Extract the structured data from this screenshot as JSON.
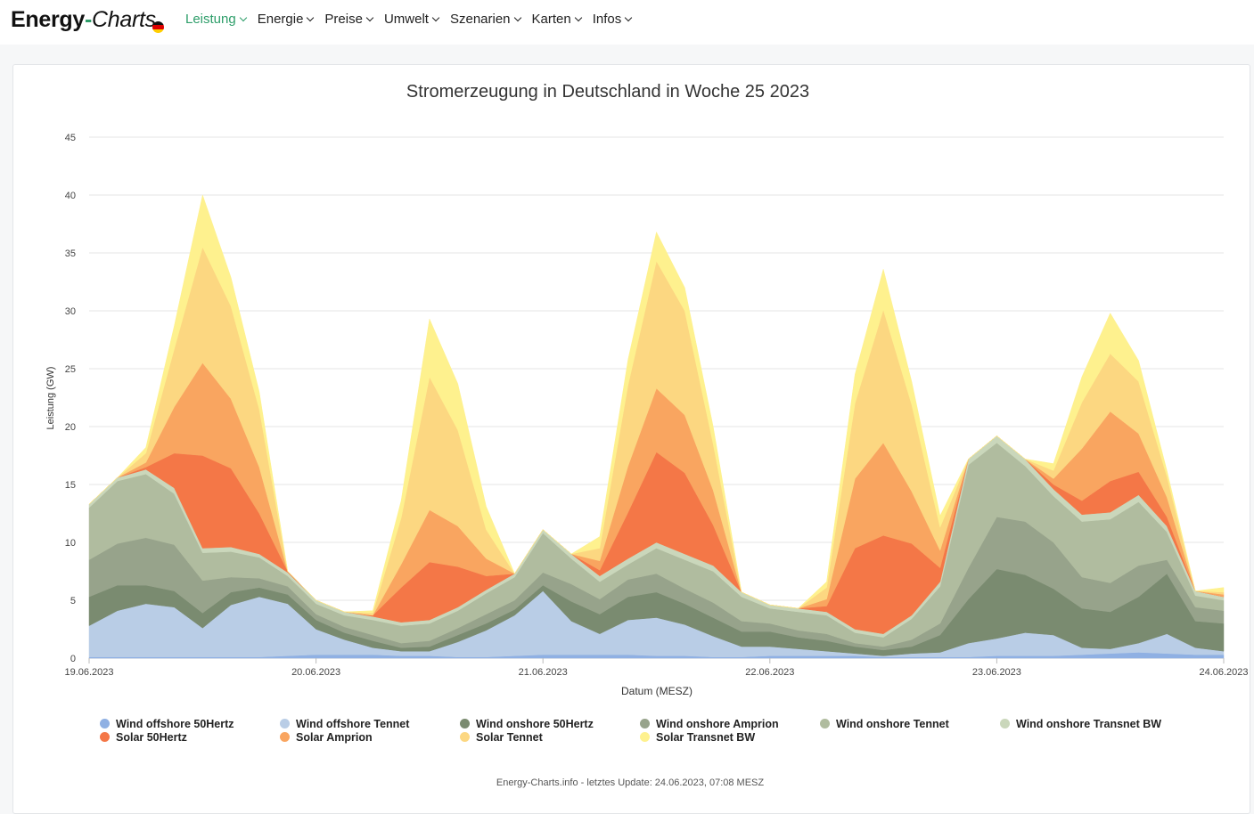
{
  "nav": {
    "logo_main": "Energy",
    "logo_dash": "-",
    "logo_sub": "Charts",
    "items": [
      {
        "label": "Leistung",
        "active": true
      },
      {
        "label": "Energie",
        "active": false
      },
      {
        "label": "Preise",
        "active": false
      },
      {
        "label": "Umwelt",
        "active": false
      },
      {
        "label": "Szenarien",
        "active": false
      },
      {
        "label": "Karten",
        "active": false
      },
      {
        "label": "Infos",
        "active": false
      }
    ]
  },
  "footer": "Energy-Charts.info - letztes Update: 24.06.2023, 07:08 MESZ",
  "chart_data": {
    "type": "area",
    "stacked": true,
    "title": "Stromerzeugung in Deutschland in Woche 25 2023",
    "xlabel": "Datum (MESZ)",
    "ylabel": "Leistung (GW)",
    "ylim": [
      0,
      45
    ],
    "yticks": [
      0,
      5,
      10,
      15,
      20,
      25,
      30,
      35,
      40,
      45
    ],
    "xlim": [
      0,
      5
    ],
    "xticks": [
      {
        "value": 0,
        "label": "19.06.2023"
      },
      {
        "value": 1,
        "label": "20.06.2023"
      },
      {
        "value": 2,
        "label": "21.06.2023"
      },
      {
        "value": 3,
        "label": "22.06.2023"
      },
      {
        "value": 4,
        "label": "23.06.2023"
      },
      {
        "value": 5,
        "label": "24.06.2023"
      }
    ],
    "x_unit": "days since 19.06.2023 00:00",
    "x": [
      0,
      0.125,
      0.25,
      0.375,
      0.5,
      0.625,
      0.75,
      0.875,
      1,
      1.125,
      1.25,
      1.375,
      1.5,
      1.625,
      1.75,
      1.875,
      2,
      2.125,
      2.25,
      2.375,
      2.5,
      2.625,
      2.75,
      2.875,
      3,
      3.125,
      3.25,
      3.375,
      3.5,
      3.625,
      3.75,
      3.875,
      4,
      4.125,
      4.25,
      4.375,
      4.5,
      4.625,
      4.75,
      4.875,
      5
    ],
    "series": [
      {
        "name": "Wind offshore 50Hertz",
        "color": "#8fb0e3",
        "values": [
          0.1,
          0.1,
          0.1,
          0.1,
          0.1,
          0.1,
          0.1,
          0.2,
          0.3,
          0.3,
          0.3,
          0.2,
          0.2,
          0.1,
          0.1,
          0.2,
          0.3,
          0.3,
          0.3,
          0.3,
          0.2,
          0.2,
          0.1,
          0.1,
          0.2,
          0.2,
          0.2,
          0.2,
          0.1,
          0.1,
          0.1,
          0.1,
          0.2,
          0.2,
          0.2,
          0.3,
          0.4,
          0.5,
          0.4,
          0.3,
          0.3
        ]
      },
      {
        "name": "Wind offshore Tennet",
        "color": "#b9cde6",
        "values": [
          2.7,
          4,
          4.6,
          4.3,
          2.5,
          4.5,
          5.2,
          4.5,
          2.2,
          1.3,
          0.6,
          0.4,
          0.4,
          1.3,
          2.3,
          3.5,
          5.5,
          2.9,
          1.8,
          3,
          3.3,
          2.7,
          1.8,
          0.9,
          0.8,
          0.6,
          0.4,
          0.2,
          0.1,
          0.3,
          0.4,
          1.2,
          1.5,
          2,
          1.8,
          0.6,
          0.4,
          0.8,
          1.7,
          0.6,
          0.3
        ]
      },
      {
        "name": "Wind onshore 50Hertz",
        "color": "#7a8b70",
        "values": [
          2.5,
          2.2,
          1.6,
          1.4,
          1.3,
          1.1,
          0.8,
          0.8,
          0.8,
          0.6,
          0.6,
          0.3,
          0.4,
          0.6,
          0.6,
          0.5,
          0.5,
          1.7,
          1.7,
          2,
          2.2,
          1.8,
          1.6,
          1.3,
          1.3,
          1,
          0.9,
          0.6,
          0.5,
          0.6,
          1.5,
          3.8,
          6,
          5,
          4,
          3.4,
          3.2,
          4,
          5.2,
          2.3,
          2.4
        ]
      },
      {
        "name": "Wind onshore Amprion",
        "color": "#97a38b",
        "values": [
          3.2,
          3.6,
          4.1,
          4,
          2.8,
          1.3,
          0.8,
          0.7,
          0.5,
          0.5,
          0.5,
          0.4,
          0.5,
          0.6,
          0.8,
          0.8,
          1.1,
          1.5,
          1.3,
          1.5,
          1.6,
          1.3,
          1.3,
          0.9,
          0.7,
          0.6,
          0.6,
          0.3,
          0.3,
          0.6,
          1,
          2.7,
          4.5,
          4.6,
          4,
          2.7,
          2.5,
          2.7,
          1.2,
          1.2,
          1.1
        ]
      },
      {
        "name": "Wind onshore Tennet",
        "color": "#b0bc9f",
        "values": [
          4.5,
          5.4,
          5.5,
          4.4,
          2.4,
          2.2,
          1.8,
          0.9,
          0.9,
          1,
          1.3,
          1.5,
          1.5,
          1.5,
          1.8,
          2,
          3.4,
          2.2,
          1.5,
          1.3,
          2.2,
          2.5,
          2.7,
          2.1,
          1.3,
          1.6,
          1.6,
          0.9,
          0.8,
          1.8,
          3.2,
          8.9,
          6.4,
          4.8,
          4,
          4.8,
          5.5,
          5.5,
          2.4,
          1,
          0.9
        ]
      },
      {
        "name": "Wind onshore Transnet BW",
        "color": "#cad7bb",
        "values": [
          0.3,
          0.3,
          0.4,
          0.5,
          0.4,
          0.4,
          0.3,
          0.3,
          0.3,
          0.3,
          0.3,
          0.3,
          0.3,
          0.3,
          0.3,
          0.3,
          0.3,
          0.4,
          0.5,
          0.5,
          0.5,
          0.5,
          0.5,
          0.4,
          0.3,
          0.3,
          0.3,
          0.3,
          0.3,
          0.3,
          0.4,
          0.5,
          0.6,
          0.6,
          0.6,
          0.6,
          0.6,
          0.6,
          0.5,
          0.4,
          0.3
        ]
      },
      {
        "name": "Solar 50Hertz",
        "color": "#f47747",
        "values": [
          0,
          0,
          0.2,
          3,
          8,
          6.8,
          3.5,
          0.1,
          0,
          0,
          0.1,
          3,
          5,
          3.5,
          1.2,
          0,
          0,
          0,
          0.5,
          4,
          7.8,
          7,
          3.5,
          0,
          0,
          0,
          0.5,
          7,
          8.5,
          6.2,
          1.2,
          0,
          0,
          0,
          0.4,
          1.2,
          2.7,
          2,
          0.8,
          0,
          0
        ]
      },
      {
        "name": "Solar Amprion",
        "color": "#f9a560",
        "values": [
          0,
          0,
          0.4,
          4,
          8,
          6,
          4,
          0,
          0,
          0,
          0,
          2,
          4.5,
          3.5,
          1.5,
          0,
          0,
          0,
          0.8,
          4,
          5.5,
          5,
          3,
          0,
          0,
          0,
          0.6,
          6,
          8,
          4.5,
          1.5,
          0,
          0,
          0,
          0.5,
          4.5,
          6,
          3.3,
          1.7,
          0,
          0.2
        ]
      },
      {
        "name": "Solar Tennet",
        "color": "#fcd781",
        "values": [
          0,
          0,
          0.8,
          5,
          10,
          8,
          5,
          0,
          0,
          0,
          0.2,
          4,
          11.5,
          8.3,
          2.5,
          0,
          0,
          0,
          1.1,
          7,
          11,
          9,
          4,
          0,
          0,
          0,
          1,
          6.5,
          11.5,
          7.5,
          2,
          0,
          0,
          0,
          0.7,
          4,
          5,
          4.5,
          1.8,
          0,
          0.2
        ]
      },
      {
        "name": "Solar Transnet BW",
        "color": "#fef18e",
        "values": [
          0,
          0,
          0.5,
          2,
          4.5,
          2.5,
          1.5,
          0,
          0,
          0,
          0.2,
          1.5,
          5,
          4,
          2,
          0,
          0,
          0,
          1,
          2.2,
          2.5,
          2,
          1.5,
          0,
          0,
          0,
          0.5,
          2.5,
          3.5,
          2,
          1,
          0,
          0,
          0,
          0.6,
          2.2,
          3.5,
          1.8,
          0.5,
          0,
          0.4
        ]
      }
    ]
  }
}
